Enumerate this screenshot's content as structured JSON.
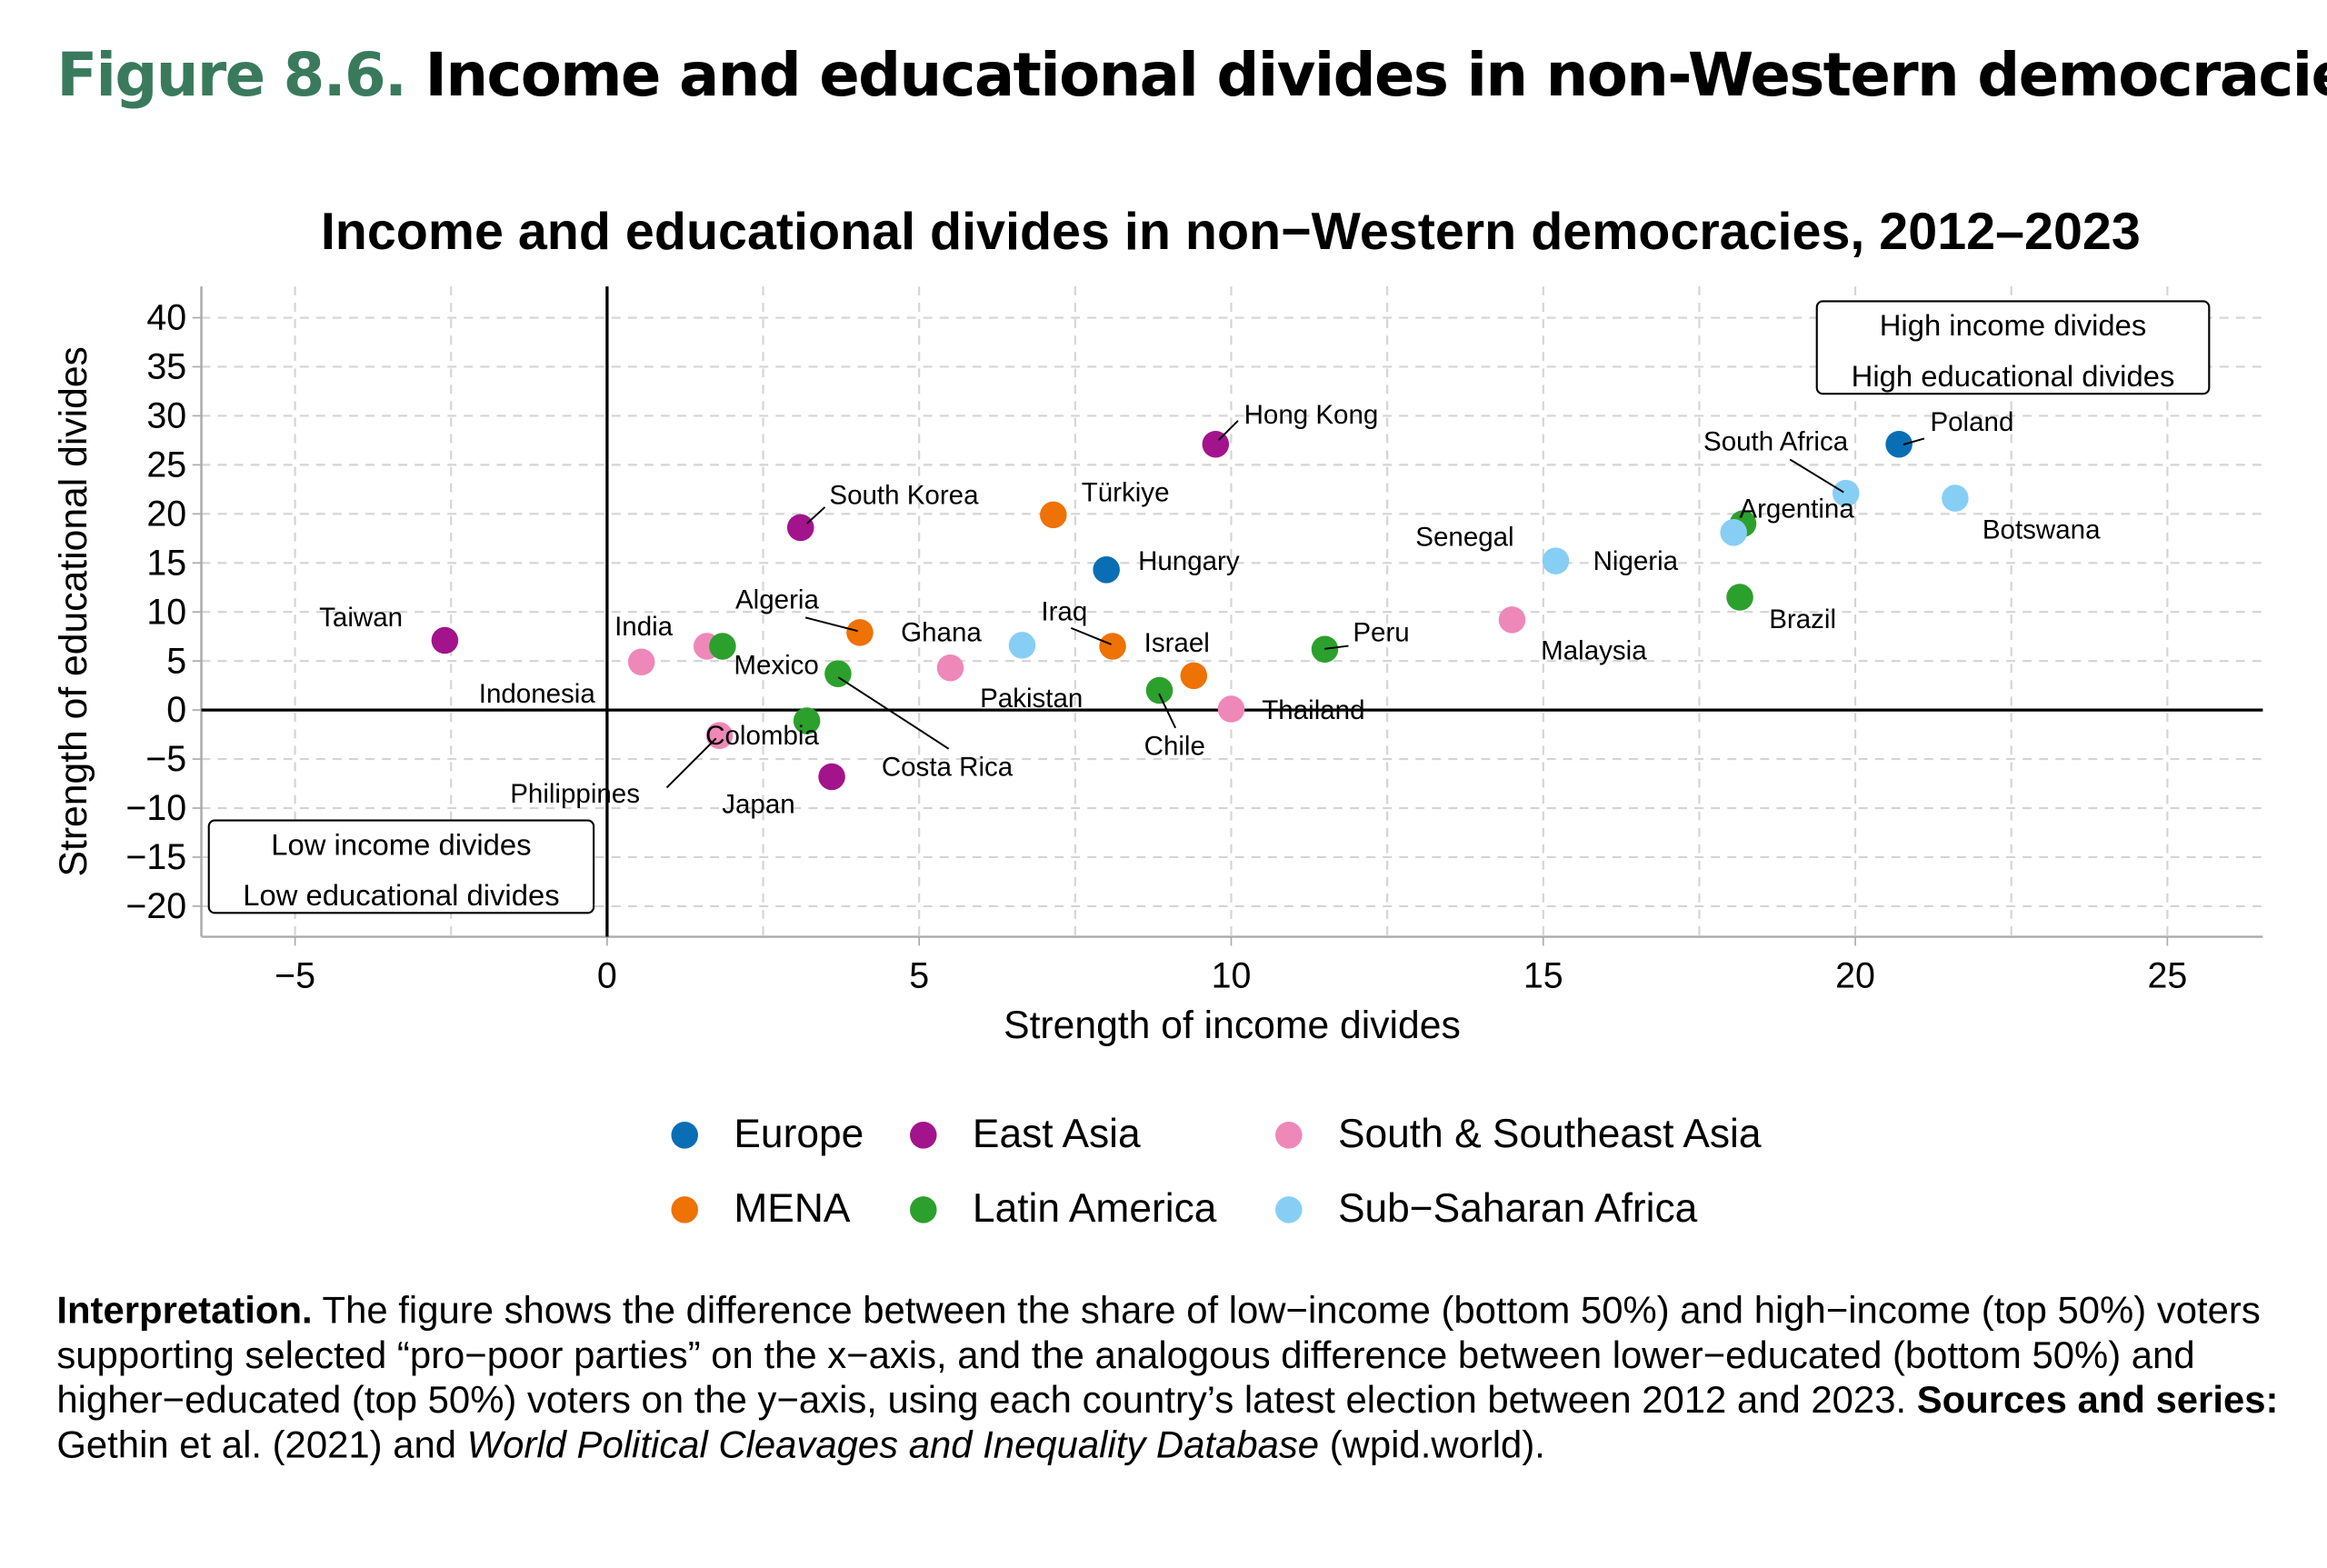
{
  "figure": {
    "number": "Figure 8.6.",
    "title": "Income and educational divides in non-Western democracies"
  },
  "chart_data": {
    "type": "scatter",
    "title": "Income and educational divides in non−Western democracies, 2012–2023",
    "xlabel": "Strength of income divides",
    "ylabel": "Strength of educational divides",
    "xlim": [
      -6.5,
      26.5
    ],
    "ylim": [
      -23,
      43
    ],
    "xticks": [
      -5,
      0,
      5,
      10,
      15,
      20,
      25
    ],
    "xtick_labels": [
      "−5",
      "0",
      "5",
      "10",
      "15",
      "20",
      "25"
    ],
    "yticks": [
      -20,
      -15,
      -10,
      -5,
      0,
      5,
      10,
      15,
      20,
      25,
      30,
      35,
      40
    ],
    "ytick_labels": [
      "−20",
      "−15",
      "−10",
      "−5",
      "0",
      "5",
      "10",
      "15",
      "20",
      "25",
      "30",
      "35",
      "40"
    ],
    "grid": true,
    "legend_position": "bottom",
    "groups": [
      {
        "name": "Europe",
        "color": "#0a6eb4"
      },
      {
        "name": "East Asia",
        "color": "#a3148c"
      },
      {
        "name": "South & Southeast Asia",
        "color": "#ee88b8"
      },
      {
        "name": "MENA",
        "color": "#ee7204"
      },
      {
        "name": "Latin America",
        "color": "#2ca02c"
      },
      {
        "name": "Sub−Saharan Africa",
        "color": "#87cef5"
      }
    ],
    "points": [
      {
        "country": "Poland",
        "group": "Europe",
        "x": 20.7,
        "y": 27.1
      },
      {
        "country": "Hungary",
        "group": "Europe",
        "x": 8.0,
        "y": 14.3
      },
      {
        "country": "Hong Kong",
        "group": "East Asia",
        "x": 9.75,
        "y": 27.1
      },
      {
        "country": "South Korea",
        "group": "East Asia",
        "x": 3.1,
        "y": 18.6
      },
      {
        "country": "Taiwan",
        "group": "East Asia",
        "x": -2.6,
        "y": 7.1
      },
      {
        "country": "Japan",
        "group": "East Asia",
        "x": 3.6,
        "y": -6.8
      },
      {
        "country": "India",
        "group": "South & Southeast Asia",
        "x": 0.55,
        "y": 4.9
      },
      {
        "country": "Indonesia",
        "group": "South & Southeast Asia",
        "x": 1.6,
        "y": 6.5
      },
      {
        "country": "Philippines",
        "group": "South & Southeast Asia",
        "x": 1.8,
        "y": -2.6
      },
      {
        "country": "Pakistan",
        "group": "South & Southeast Asia",
        "x": 5.5,
        "y": 4.3
      },
      {
        "country": "Thailand",
        "group": "South & Southeast Asia",
        "x": 10.0,
        "y": 0.1
      },
      {
        "country": "Malaysia",
        "group": "South & Southeast Asia",
        "x": 14.5,
        "y": 9.2
      },
      {
        "country": "Algeria",
        "group": "MENA",
        "x": 4.05,
        "y": 7.9
      },
      {
        "country": "Türkiye",
        "group": "MENA",
        "x": 7.15,
        "y": 19.9
      },
      {
        "country": "Iraq",
        "group": "MENA",
        "x": 8.1,
        "y": 6.5
      },
      {
        "country": "Israel",
        "group": "MENA",
        "x": 9.4,
        "y": 3.5
      },
      {
        "country": "Mexico",
        "group": "Latin America",
        "x": 1.85,
        "y": 6.5
      },
      {
        "country": "Costa Rica",
        "group": "Latin America",
        "x": 3.7,
        "y": 3.7
      },
      {
        "country": "Colombia",
        "group": "Latin America",
        "x": 3.2,
        "y": -1.1
      },
      {
        "country": "Chile",
        "group": "Latin America",
        "x": 8.85,
        "y": 2.0
      },
      {
        "country": "Peru",
        "group": "Latin America",
        "x": 11.5,
        "y": 6.2
      },
      {
        "country": "Brazil",
        "group": "Latin America",
        "x": 18.15,
        "y": 11.5
      },
      {
        "country": "Argentina",
        "group": "Latin America",
        "x": 18.2,
        "y": 19.0
      },
      {
        "country": "Ghana",
        "group": "Sub−Saharan Africa",
        "x": 6.65,
        "y": 6.6
      },
      {
        "country": "Nigeria",
        "group": "Sub−Saharan Africa",
        "x": 15.2,
        "y": 15.2
      },
      {
        "country": "Senegal",
        "group": "Sub−Saharan Africa",
        "x": 18.05,
        "y": 18.1
      },
      {
        "country": "South Africa",
        "group": "Sub−Saharan Africa",
        "x": 19.85,
        "y": 22.1
      },
      {
        "country": "Botswana",
        "group": "Sub−Saharan Africa",
        "x": 21.6,
        "y": 21.6
      }
    ],
    "annotations": {
      "top_right": [
        "High income divides",
        "High educational divides"
      ],
      "bottom_left": [
        "Low income divides",
        "Low educational divides"
      ]
    }
  },
  "interpretation": {
    "label": "Interpretation.",
    "text": " The figure shows the difference between the share of low−income (bottom 50%) and high−income (top 50%) voters supporting selected “pro−poor parties” on the x−axis, and the analogous difference between lower−educated (bottom 50%) and higher−educated (top 50%) voters on the y−axis, using each country’s latest election between 2012 and 2023. ",
    "sources_label": "Sources and series:",
    "sources_text": " Gethin et al. (2021) and ",
    "sources_italic1": "World Political Cleavages and Inequality Database",
    "sources_end": " (wpid.world)."
  }
}
